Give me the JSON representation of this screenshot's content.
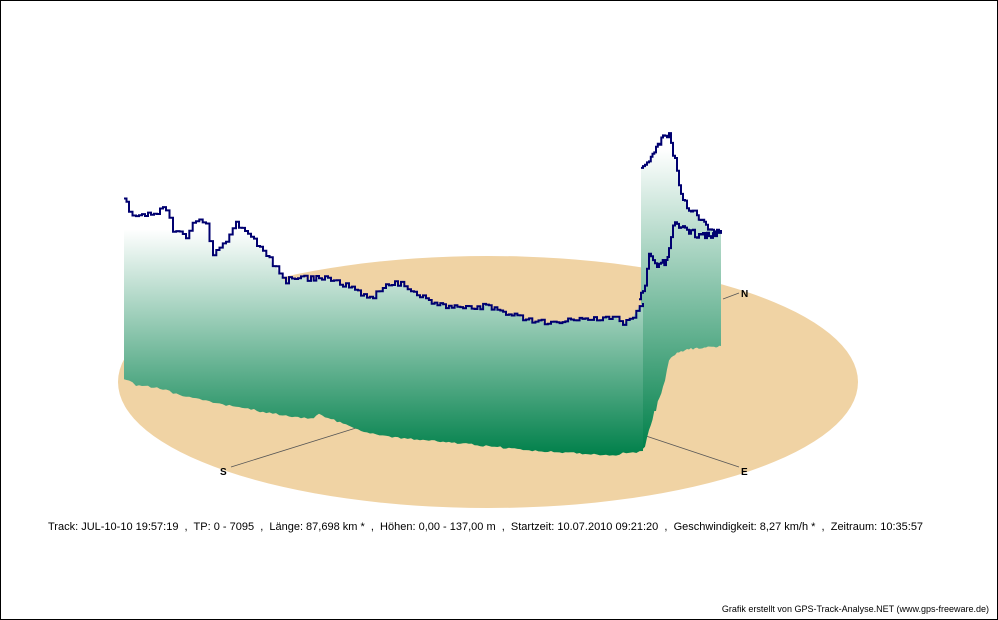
{
  "chart_data": {
    "type": "3d-elevation-track",
    "compass": {
      "north": "N",
      "south": "S",
      "east": "E"
    },
    "colors": {
      "ground": "#f0d3a4",
      "curtain_top": "#ffffff",
      "curtain_bottom": "#00804a",
      "track_line": "#000070",
      "axis_line": "#555555"
    },
    "elevation_m": {
      "min": 0.0,
      "max": 137.0
    },
    "track_points": {
      "first": 0,
      "last": 7095
    }
  },
  "info": {
    "track": "Track: JUL-10-10 19:57:19",
    "tp": "TP: 0 - 7095",
    "length": "Länge: 87,698 km *",
    "heights": "Höhen: 0,00 - 137,00 m",
    "start": "Startzeit: 10.07.2010 09:21:20",
    "speed": "Geschwindigkeit: 8,27 km/h *",
    "duration": "Zeitraum: 10:35:57",
    "separator": "  ,  "
  },
  "credit": "Grafik erstellt von GPS-Track-Analyse.NET (www.gps-freeware.de)"
}
